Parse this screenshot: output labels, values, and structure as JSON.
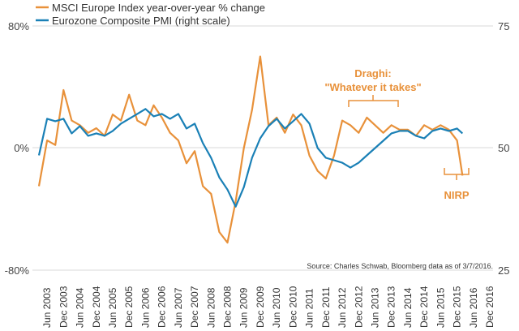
{
  "chart_data": {
    "type": "line",
    "legend": {
      "placement": "top-left",
      "entries": [
        {
          "label": "MSCI Europe Index year-over-year % change",
          "color": "#e8913a"
        },
        {
          "label": "Eurozone Composite PMI (right scale)",
          "color": "#1a80b6"
        }
      ]
    },
    "grid": "horizontal",
    "left_axis": {
      "ticks": [
        "80%",
        "0%",
        "-80%"
      ],
      "ylim": [
        -80,
        80
      ]
    },
    "right_axis": {
      "ticks": [
        "75",
        "50",
        "25"
      ],
      "ylim": [
        25,
        75
      ]
    },
    "x_labels": [
      "Jun 2003",
      "Dec 2003",
      "Jun 2004",
      "Dec 2004",
      "Jun 2005",
      "Dec 2005",
      "Jun 2006",
      "Dec 2006",
      "Jun 2007",
      "Dec 2007",
      "Jun 2008",
      "Dec 2008",
      "Jun 2009",
      "Dec 2009",
      "Jun 2010",
      "Dec 2010",
      "Jun 2011",
      "Dec 2011",
      "Jun 2012",
      "Dec 2012",
      "Jun 2013",
      "Dec 2013",
      "Jun 2014",
      "Dec 2014",
      "Jun 2015",
      "Dec 2015",
      "Jun 2016",
      "Dec 2016"
    ],
    "series": [
      {
        "name": "MSCI Europe Index year-over-year % change",
        "axis": "left",
        "color": "#e8913a",
        "x": [
          "Mar 2003",
          "Jun 2003",
          "Sep 2003",
          "Dec 2003",
          "Mar 2004",
          "Jun 2004",
          "Sep 2004",
          "Dec 2004",
          "Mar 2005",
          "Jun 2005",
          "Sep 2005",
          "Dec 2005",
          "Mar 2006",
          "Jun 2006",
          "Sep 2006",
          "Dec 2006",
          "Mar 2007",
          "Jun 2007",
          "Sep 2007",
          "Dec 2007",
          "Mar 2008",
          "Jun 2008",
          "Sep 2008",
          "Dec 2008",
          "Mar 2009",
          "Jun 2009",
          "Sep 2009",
          "Dec 2009",
          "Mar 2010",
          "Jun 2010",
          "Sep 2010",
          "Dec 2010",
          "Mar 2011",
          "Jun 2011",
          "Sep 2011",
          "Dec 2011",
          "Mar 2012",
          "Jun 2012",
          "Sep 2012",
          "Dec 2012",
          "Mar 2013",
          "Jun 2013",
          "Sep 2013",
          "Dec 2013",
          "Mar 2014",
          "Jun 2014",
          "Sep 2014",
          "Dec 2014",
          "Mar 2015",
          "Jun 2015",
          "Sep 2015",
          "Dec 2015",
          "Feb 2016"
        ],
        "values": [
          -25,
          5,
          2,
          38,
          18,
          15,
          10,
          13,
          8,
          22,
          18,
          35,
          18,
          15,
          28,
          20,
          10,
          5,
          -10,
          -2,
          -25,
          -30,
          -55,
          -62,
          -35,
          0,
          25,
          60,
          15,
          20,
          10,
          22,
          15,
          -5,
          -15,
          -20,
          -5,
          18,
          15,
          10,
          20,
          15,
          10,
          15,
          12,
          12,
          8,
          15,
          12,
          15,
          12,
          5,
          -18
        ]
      },
      {
        "name": "Eurozone Composite PMI (right scale)",
        "axis": "right",
        "color": "#1a80b6",
        "x": [
          "Mar 2003",
          "Jun 2003",
          "Sep 2003",
          "Dec 2003",
          "Mar 2004",
          "Jun 2004",
          "Sep 2004",
          "Dec 2004",
          "Mar 2005",
          "Jun 2005",
          "Sep 2005",
          "Dec 2005",
          "Mar 2006",
          "Jun 2006",
          "Sep 2006",
          "Dec 2006",
          "Mar 2007",
          "Jun 2007",
          "Sep 2007",
          "Dec 2007",
          "Mar 2008",
          "Jun 2008",
          "Sep 2008",
          "Dec 2008",
          "Mar 2009",
          "Jun 2009",
          "Sep 2009",
          "Dec 2009",
          "Mar 2010",
          "Jun 2010",
          "Sep 2010",
          "Dec 2010",
          "Mar 2011",
          "Jun 2011",
          "Sep 2011",
          "Dec 2011",
          "Mar 2012",
          "Jun 2012",
          "Sep 2012",
          "Dec 2012",
          "Mar 2013",
          "Jun 2013",
          "Sep 2013",
          "Dec 2013",
          "Mar 2014",
          "Jun 2014",
          "Sep 2014",
          "Dec 2014",
          "Mar 2015",
          "Jun 2015",
          "Sep 2015",
          "Dec 2015",
          "Feb 2016"
        ],
        "values": [
          48.5,
          56,
          55.5,
          56,
          53,
          54.5,
          52.5,
          53,
          52.5,
          53.5,
          55,
          56,
          57,
          58,
          56.5,
          57,
          56,
          57,
          54,
          55,
          51,
          48,
          44,
          41.5,
          38,
          42,
          48,
          52,
          54.5,
          56,
          54,
          55.5,
          57,
          55,
          50,
          48,
          47.5,
          47,
          46,
          47,
          48.5,
          50,
          51.5,
          53,
          53.5,
          53.5,
          52.5,
          52,
          53.5,
          54,
          53.5,
          54,
          53
        ]
      }
    ],
    "annotations": [
      {
        "label_line1": "Draghi:",
        "label_line2": "\"Whatever it takes\"",
        "color": "#e8913a",
        "span": [
          "Jul 2012",
          "Dec 2013"
        ]
      },
      {
        "label": "NIRP",
        "color": "#e8913a",
        "span": [
          "Jun 2015",
          "Mar 2016"
        ]
      }
    ],
    "source": "Source: Charles Schwab, Bloomberg data as of 3/7/2016."
  }
}
